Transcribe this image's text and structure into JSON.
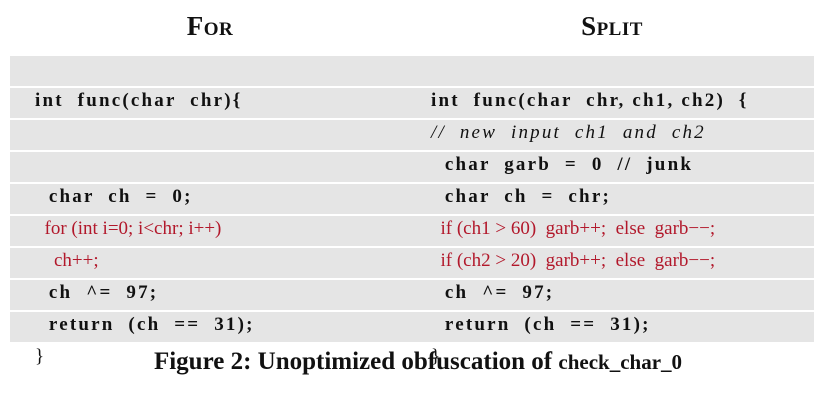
{
  "left_panel": {
    "title": "For",
    "lines": [
      "int  func(char  chr){",
      "",
      "",
      "  char  ch  =  0;",
      "  for (int i=0; i<chr; i++)",
      "    ch++;",
      "  ch  ^=  97;",
      "  return  (ch  ==  31);",
      "}"
    ]
  },
  "right_panel": {
    "title": "Split",
    "lines": [
      "int  func(char  chr, ch1, ch2)  {",
      "//  new  input  ch1  and  ch2",
      "  char  garb  =  0  //  junk",
      "  char  ch  =  chr;",
      "  if (ch1 > 60)  garb++;  else  garb−−;",
      "  if (ch2 > 20)  garb++;  else  garb−−;",
      "  ch  ^=  97;",
      "  return  (ch  ==  31);",
      "}"
    ]
  },
  "caption": {
    "prefix": "Figure 2: Unoptimized obfuscation of ",
    "code_name": "check_char_0"
  },
  "colors": {
    "highlight_text": "#b2182b",
    "row_shade": "#e5e5e5"
  }
}
